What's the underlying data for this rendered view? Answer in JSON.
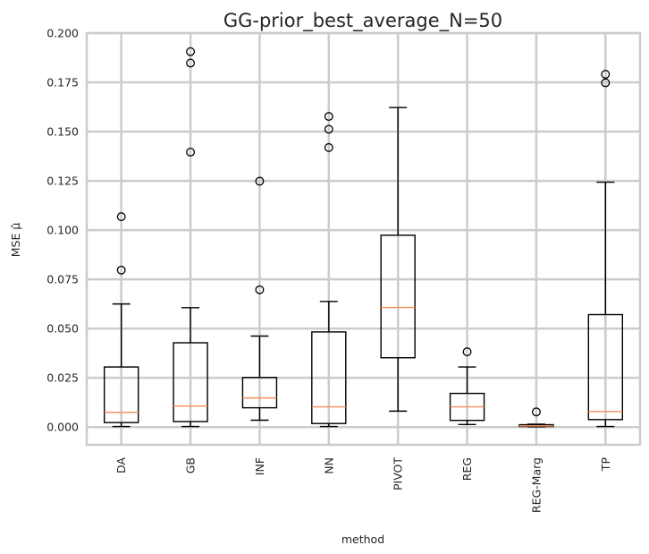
{
  "chart_data": {
    "type": "box",
    "title": "GG-prior_best_average_N=50",
    "xlabel": "method",
    "ylabel": "MSE μ̂",
    "ylim": [
      -0.009,
      0.2
    ],
    "y_ticks": [
      0.0,
      0.025,
      0.05,
      0.075,
      0.1,
      0.125,
      0.15,
      0.175,
      0.2
    ],
    "y_tick_labels": [
      "0.000",
      "0.025",
      "0.050",
      "0.075",
      "0.100",
      "0.125",
      "0.150",
      "0.175",
      "0.200"
    ],
    "grid": true,
    "box_color": "#000000",
    "median_color": "#f28e5b",
    "grid_color": "#cccccc",
    "categories": [
      "DA",
      "GB",
      "INF",
      "NN",
      "PIVOT",
      "REG",
      "REG-Marg",
      "TP"
    ],
    "boxes": [
      {
        "whisker_low": 0.0003,
        "q1": 0.0023,
        "median": 0.0075,
        "q3": 0.0305,
        "whisker_high": 0.0625,
        "outliers": [
          0.1068,
          0.0797
        ]
      },
      {
        "whisker_low": 0.0003,
        "q1": 0.0028,
        "median": 0.0107,
        "q3": 0.0428,
        "whisker_high": 0.0606,
        "outliers": [
          0.1906,
          0.1848,
          0.1396
        ]
      },
      {
        "whisker_low": 0.0035,
        "q1": 0.0098,
        "median": 0.0148,
        "q3": 0.0252,
        "whisker_high": 0.0462,
        "outliers": [
          0.1248,
          0.0697
        ]
      },
      {
        "whisker_low": 0.0003,
        "q1": 0.0018,
        "median": 0.0103,
        "q3": 0.0483,
        "whisker_high": 0.0638,
        "outliers": [
          0.1577,
          0.1512,
          0.1419
        ]
      },
      {
        "whisker_low": 0.0081,
        "q1": 0.0352,
        "median": 0.0607,
        "q3": 0.0974,
        "whisker_high": 0.1622,
        "outliers": []
      },
      {
        "whisker_low": 0.0013,
        "q1": 0.0034,
        "median": 0.0103,
        "q3": 0.0171,
        "whisker_high": 0.0305,
        "outliers": [
          0.0382
        ]
      },
      {
        "whisker_low": 0.0001,
        "q1": 0.0003,
        "median": 0.0006,
        "q3": 0.0012,
        "whisker_high": 0.0015,
        "outliers": [
          0.0077
        ]
      },
      {
        "whisker_low": 0.0003,
        "q1": 0.0038,
        "median": 0.0079,
        "q3": 0.0571,
        "whisker_high": 0.1243,
        "outliers": [
          0.1791,
          0.1748
        ]
      }
    ]
  }
}
